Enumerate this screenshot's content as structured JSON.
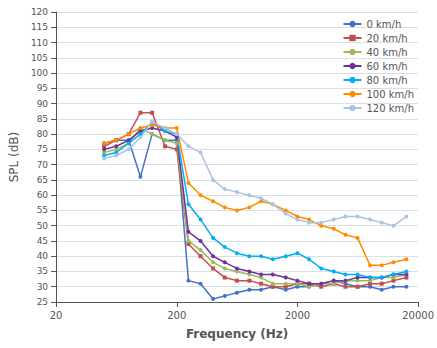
{
  "chart_data": {
    "type": "line",
    "xlabel": "Frequency (Hz)",
    "ylabel": "SPL (dB)",
    "log": "x",
    "xlim": [
      20,
      20000
    ],
    "ylim": [
      25,
      120
    ],
    "xticks": [
      20,
      200,
      2000,
      20000
    ],
    "yticks": [
      25,
      30,
      35,
      40,
      45,
      50,
      55,
      60,
      65,
      70,
      75,
      80,
      85,
      90,
      95,
      100,
      105,
      110,
      115,
      120
    ],
    "grid": true,
    "legend": "upper right",
    "x": [
      50,
      63,
      80,
      100,
      125,
      160,
      200,
      250,
      315,
      400,
      500,
      630,
      800,
      1000,
      1250,
      1600,
      2000,
      2500,
      3150,
      4000,
      5000,
      6300,
      8000,
      10000,
      12500,
      16000
    ],
    "series": [
      {
        "name": "0 km/h",
        "color": "#4472C4",
        "marker": "circle",
        "values": [
          77,
          78,
          78,
          66,
          80,
          78,
          78,
          32,
          31,
          26,
          27,
          28,
          29,
          29,
          30,
          29,
          30,
          30,
          31,
          32,
          31,
          30,
          30,
          29,
          30,
          30
        ]
      },
      {
        "name": "20 km/h",
        "color": "#C0504D",
        "marker": "square",
        "values": [
          76,
          78,
          80,
          87,
          87,
          76,
          75,
          44,
          40,
          36,
          33,
          32,
          32,
          31,
          30,
          30,
          31,
          31,
          30,
          31,
          30,
          30,
          31,
          31,
          32,
          33
        ]
      },
      {
        "name": "40 km/h",
        "color": "#9BBB59",
        "marker": "circle",
        "values": [
          74,
          75,
          77,
          82,
          80,
          78,
          77,
          45,
          42,
          38,
          36,
          35,
          34,
          33,
          31,
          31,
          31,
          30,
          31,
          31,
          32,
          32,
          32,
          33,
          33,
          34
        ]
      },
      {
        "name": "60 km/h",
        "color": "#7030A0",
        "marker": "circle",
        "values": [
          75,
          76,
          78,
          81,
          82,
          81,
          79,
          48,
          45,
          40,
          38,
          36,
          35,
          34,
          34,
          33,
          32,
          31,
          31,
          32,
          32,
          33,
          33,
          33,
          34,
          34
        ]
      },
      {
        "name": "80 km/h",
        "color": "#00B0F0",
        "marker": "circle",
        "values": [
          73,
          74,
          77,
          80,
          84,
          81,
          80,
          57,
          52,
          46,
          43,
          41,
          40,
          40,
          39,
          40,
          41,
          39,
          36,
          35,
          34,
          34,
          33,
          33,
          34,
          35
        ]
      },
      {
        "name": "100 km/h",
        "color": "#FF8C00",
        "marker": "circle",
        "values": [
          77,
          78,
          80,
          82,
          83,
          82,
          82,
          64,
          60,
          58,
          56,
          55,
          56,
          58,
          57,
          55,
          53,
          52,
          50,
          49,
          47,
          46,
          37,
          37,
          38,
          39
        ]
      },
      {
        "name": "120 km/h",
        "color": "#A9C4E4",
        "marker": "circle",
        "values": [
          72,
          73,
          75,
          79,
          84,
          82,
          80,
          76,
          74,
          65,
          62,
          61,
          60,
          59,
          57,
          54,
          52,
          51,
          51,
          52,
          53,
          53,
          52,
          51,
          50,
          53
        ]
      }
    ]
  }
}
